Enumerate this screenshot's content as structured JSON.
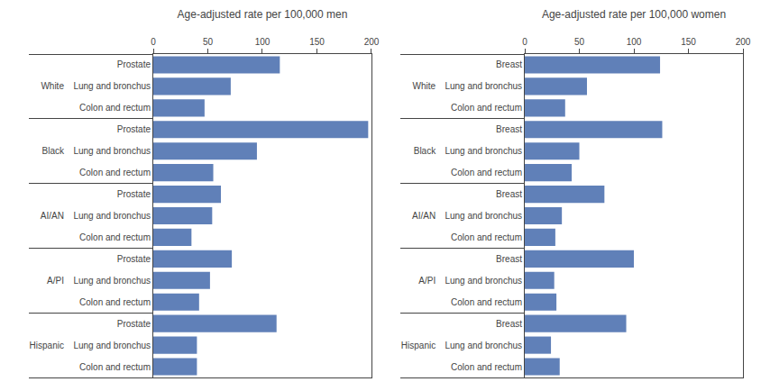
{
  "chart_data": [
    {
      "type": "bar",
      "orientation": "horizontal",
      "xlabel": "Age-adjusted rate per 100,000 men",
      "groups": [
        "White",
        "Black",
        "AI/AN",
        "A/PI",
        "Hispanic"
      ],
      "categories": [
        [
          "Prostate",
          "Lung and bronchus",
          "Colon and rectum"
        ],
        [
          "Prostate",
          "Lung and bronchus",
          "Colon and rectum"
        ],
        [
          "Prostate",
          "Lung and bronchus",
          "Colon and rectum"
        ],
        [
          "Prostate",
          "Lung and bronchus",
          "Colon and rectum"
        ],
        [
          "Prostate",
          "Lung and bronchus",
          "Colon and rectum"
        ]
      ],
      "values": [
        [
          116,
          71,
          47
        ],
        [
          197,
          95,
          55
        ],
        [
          62,
          54,
          35
        ],
        [
          72,
          52,
          42
        ],
        [
          113,
          40,
          40
        ]
      ],
      "color": "#6080b8",
      "xlim": [
        0,
        200
      ],
      "xticks": [
        0,
        50,
        100,
        150,
        200
      ],
      "grid": false
    },
    {
      "type": "bar",
      "orientation": "horizontal",
      "xlabel": "Age-adjusted rate per 100,000 women",
      "groups": [
        "White",
        "Black",
        "AI/AN",
        "A/PI",
        "Hispanic"
      ],
      "categories": [
        [
          "Breast",
          "Lung and bronchus",
          "Colon and rectum"
        ],
        [
          "Breast",
          "Lung and bronchus",
          "Colon and rectum"
        ],
        [
          "Breast",
          "Lung and bronchus",
          "Colon and rectum"
        ],
        [
          "Breast",
          "Colon and rectum",
          "Lung and bronchus"
        ],
        [
          "Breast",
          "Colon and rectum",
          "Lung and bronchus"
        ]
      ],
      "values": [
        [
          124,
          57,
          37
        ],
        [
          126,
          50,
          43
        ],
        [
          73,
          34,
          28
        ],
        [
          100,
          29,
          27
        ],
        [
          93,
          32,
          24
        ]
      ],
      "color": "#6080b8",
      "xlim": [
        0,
        200
      ],
      "xticks": [
        0,
        50,
        100,
        150,
        200
      ],
      "grid": false
    }
  ]
}
